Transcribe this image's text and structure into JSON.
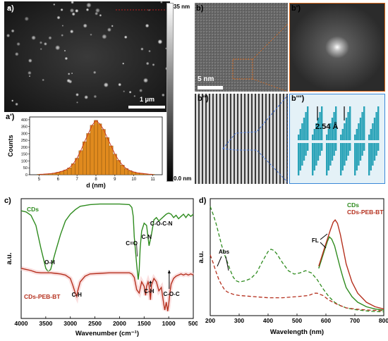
{
  "panels": {
    "a": "a)",
    "a_prime": "a')",
    "b": "b)",
    "b_prime": "b')",
    "b_dprime": "b'')",
    "b_tprime": "b''')",
    "c": "c)",
    "d": "d)"
  },
  "afm": {
    "colorbar_top": "35 nm",
    "colorbar_bottom": "0.0 nm",
    "scale_bar": "1 μm"
  },
  "hrtem": {
    "scale_bar": "5 nm",
    "lattice_spacing": "2.54 Å"
  },
  "hist_chart": {
    "chart_data": {
      "type": "bar",
      "xlabel": "d (nm)",
      "ylabel": "Counts",
      "xlim": [
        4.5,
        11.5
      ],
      "ylim": [
        0,
        420
      ],
      "xticks": [
        5,
        6,
        7,
        8,
        9,
        10,
        11
      ],
      "yticks": [
        0,
        50,
        100,
        150,
        200,
        250,
        300,
        350,
        400
      ],
      "bin_width": 0.2,
      "x": [
        5.0,
        5.2,
        5.4,
        5.6,
        5.8,
        6.0,
        6.2,
        6.4,
        6.6,
        6.8,
        7.0,
        7.2,
        7.4,
        7.6,
        7.8,
        8.0,
        8.2,
        8.4,
        8.6,
        8.8,
        9.0,
        9.2,
        9.4,
        9.6,
        9.8,
        10.0,
        10.2,
        10.4,
        10.6,
        10.8,
        11.0
      ],
      "values": [
        3,
        4,
        6,
        8,
        12,
        18,
        25,
        35,
        50,
        80,
        120,
        175,
        240,
        300,
        360,
        395,
        370,
        330,
        270,
        210,
        150,
        105,
        70,
        45,
        30,
        20,
        14,
        10,
        7,
        4,
        3
      ],
      "fit_curve": "gaussian",
      "colors": {
        "bar": "#e08a1e",
        "bar_edge": "#7a4a0a",
        "fit": "#c8321e"
      }
    }
  },
  "ftir_chart": {
    "chart_data": {
      "type": "line",
      "xlabel": "Wavenumber (cm⁻¹)",
      "ylabel": "a.u.",
      "xlim": [
        4000,
        500
      ],
      "xticks": [
        4000,
        3500,
        3000,
        2500,
        2000,
        1500,
        1000,
        500
      ],
      "series": [
        {
          "name": "CDs",
          "color": "#2e8b1e",
          "x": [
            4000,
            3900,
            3800,
            3700,
            3600,
            3500,
            3450,
            3400,
            3300,
            3200,
            3100,
            3000,
            2900,
            2800,
            2600,
            2400,
            2200,
            2000,
            1800,
            1750,
            1720,
            1700,
            1650,
            1620,
            1600,
            1580,
            1550,
            1500,
            1450,
            1400,
            1350,
            1300,
            1250,
            1200,
            1150,
            1100,
            1050,
            1000,
            950,
            900,
            850,
            800,
            750,
            700,
            650,
            600,
            550,
            500
          ],
          "y": [
            0.93,
            0.92,
            0.89,
            0.8,
            0.6,
            0.42,
            0.39,
            0.41,
            0.57,
            0.72,
            0.84,
            0.9,
            0.94,
            0.97,
            0.985,
            0.99,
            0.99,
            0.99,
            0.985,
            0.96,
            0.88,
            0.7,
            0.45,
            0.32,
            0.4,
            0.6,
            0.75,
            0.82,
            0.8,
            0.62,
            0.72,
            0.85,
            0.87,
            0.84,
            0.86,
            0.88,
            0.9,
            0.91,
            0.9,
            0.87,
            0.89,
            0.86,
            0.88,
            0.9,
            0.87,
            0.9,
            0.88,
            0.9
          ]
        },
        {
          "name": "CDs-PEB-BT",
          "color": "#b5301e",
          "x": [
            4000,
            3900,
            3800,
            3700,
            3600,
            3500,
            3400,
            3300,
            3200,
            3100,
            3000,
            2950,
            2900,
            2870,
            2850,
            2800,
            2700,
            2600,
            2400,
            2200,
            2000,
            1800,
            1750,
            1700,
            1650,
            1600,
            1580,
            1550,
            1500,
            1470,
            1450,
            1420,
            1400,
            1370,
            1350,
            1300,
            1250,
            1200,
            1150,
            1100,
            1080,
            1050,
            1020,
            1000,
            970,
            950,
            900,
            850,
            800,
            750,
            700,
            650,
            600,
            550,
            500
          ],
          "y": [
            0.42,
            0.41,
            0.4,
            0.385,
            0.38,
            0.38,
            0.38,
            0.375,
            0.37,
            0.36,
            0.33,
            0.27,
            0.2,
            0.17,
            0.22,
            0.3,
            0.35,
            0.37,
            0.375,
            0.38,
            0.38,
            0.38,
            0.37,
            0.34,
            0.23,
            0.2,
            0.24,
            0.3,
            0.26,
            0.18,
            0.26,
            0.3,
            0.27,
            0.14,
            0.27,
            0.33,
            0.3,
            0.22,
            0.25,
            0.1,
            0.05,
            0.12,
            0.04,
            0.1,
            0.22,
            0.28,
            0.33,
            0.35,
            0.36,
            0.37,
            0.36,
            0.37,
            0.36,
            0.37,
            0.36
          ]
        }
      ],
      "annotations": [
        {
          "text": "O-H",
          "x": 3420
        },
        {
          "text": "C-H",
          "x": 2870
        },
        {
          "text": "C=O",
          "x": 1710
        },
        {
          "text": "C-N",
          "x": 1450
        },
        {
          "text": "C-O-C-N",
          "x": 1150
        },
        {
          "text": "C-H",
          "x": 1370
        },
        {
          "text": "C-O-C",
          "x": 1030
        }
      ]
    }
  },
  "uv_chart": {
    "chart_data": {
      "type": "line",
      "xlabel": "Wavelength (nm)",
      "ylabel": "a.u.",
      "xlim": [
        200,
        800
      ],
      "ylim": [
        0,
        1
      ],
      "xticks": [
        200,
        300,
        400,
        500,
        600,
        700,
        800
      ],
      "legend_position": "top-right",
      "series": [
        {
          "name": "CDs",
          "kind": "Abs",
          "style": "dashed",
          "color": "#2e8b1e",
          "x": [
            200,
            210,
            220,
            230,
            240,
            250,
            260,
            270,
            280,
            290,
            300,
            320,
            340,
            360,
            380,
            400,
            410,
            420,
            430,
            450,
            470,
            490,
            510,
            530,
            550,
            570,
            590,
            610,
            630,
            650,
            670,
            700,
            750,
            800
          ],
          "y": [
            0.95,
            0.88,
            0.8,
            0.7,
            0.6,
            0.52,
            0.45,
            0.38,
            0.32,
            0.29,
            0.28,
            0.29,
            0.31,
            0.36,
            0.46,
            0.55,
            0.57,
            0.56,
            0.53,
            0.45,
            0.38,
            0.35,
            0.36,
            0.38,
            0.36,
            0.3,
            0.22,
            0.15,
            0.1,
            0.07,
            0.05,
            0.035,
            0.02,
            0.015
          ]
        },
        {
          "name": "CDs-PEB-BT",
          "kind": "Abs",
          "style": "dashed",
          "color": "#b5301e",
          "x": [
            200,
            210,
            220,
            230,
            240,
            250,
            260,
            280,
            300,
            350,
            400,
            450,
            500,
            540,
            560,
            570,
            590,
            610,
            640,
            670,
            700,
            750,
            800
          ],
          "y": [
            0.52,
            0.45,
            0.37,
            0.3,
            0.25,
            0.21,
            0.19,
            0.17,
            0.16,
            0.15,
            0.14,
            0.14,
            0.15,
            0.16,
            0.18,
            0.18,
            0.16,
            0.12,
            0.08,
            0.05,
            0.04,
            0.03,
            0.025
          ]
        },
        {
          "name": "CDs",
          "kind": "FL",
          "style": "solid",
          "color": "#2e8b1e",
          "x": [
            575,
            585,
            595,
            605,
            612,
            620,
            630,
            640,
            650,
            660,
            670,
            690,
            710,
            740,
            770,
            800
          ],
          "y": [
            0.4,
            0.48,
            0.56,
            0.64,
            0.68,
            0.66,
            0.6,
            0.5,
            0.4,
            0.31,
            0.23,
            0.15,
            0.1,
            0.06,
            0.04,
            0.03
          ]
        },
        {
          "name": "CDs-PEB-BT",
          "kind": "FL",
          "style": "solid",
          "color": "#b5301e",
          "x": [
            575,
            585,
            595,
            605,
            615,
            625,
            632,
            640,
            650,
            660,
            670,
            690,
            710,
            740,
            770,
            800
          ],
          "y": [
            0.42,
            0.5,
            0.58,
            0.66,
            0.74,
            0.81,
            0.83,
            0.8,
            0.7,
            0.57,
            0.44,
            0.28,
            0.18,
            0.1,
            0.06,
            0.04
          ]
        }
      ],
      "annotations": [
        {
          "text": "Abs"
        },
        {
          "text": "FL"
        }
      ]
    }
  }
}
